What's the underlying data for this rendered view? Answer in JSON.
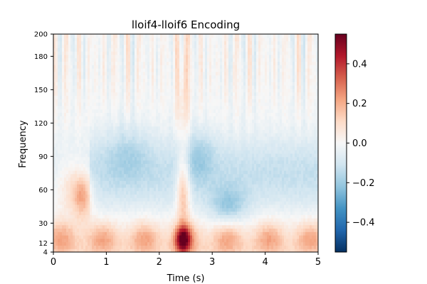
{
  "chart_data": {
    "type": "heatmap",
    "title": "lloif4-lloif6 Encoding",
    "xlabel": "Time (s)",
    "ylabel": "Frequency",
    "xlim": [
      0,
      5
    ],
    "ylim": [
      4,
      200
    ],
    "x_ticks": [
      0,
      1,
      2,
      3,
      4,
      5
    ],
    "y_ticks": [
      4,
      12,
      30,
      60,
      90,
      120,
      150,
      180,
      200
    ],
    "colorbar": {
      "colormap": "RdBu_r",
      "vmin": -0.55,
      "vmax": 0.55,
      "ticks": [
        0.4,
        0.2,
        0.0,
        -0.2,
        -0.4
      ],
      "tick_labels": [
        "0.4",
        "0.2",
        "0.0",
        "−0.2",
        "−0.4"
      ]
    },
    "notable_features": [
      {
        "time_s": 2.45,
        "freq": 15,
        "value": 0.55
      },
      {
        "time_s": 2.45,
        "freq": 60,
        "value": 0.35
      },
      {
        "time_s": 0.55,
        "freq": 55,
        "value": 0.3
      },
      {
        "time_s": 3.3,
        "freq": 45,
        "value": -0.25
      },
      {
        "time_s": 2.7,
        "freq": 95,
        "value": -0.2
      }
    ]
  }
}
